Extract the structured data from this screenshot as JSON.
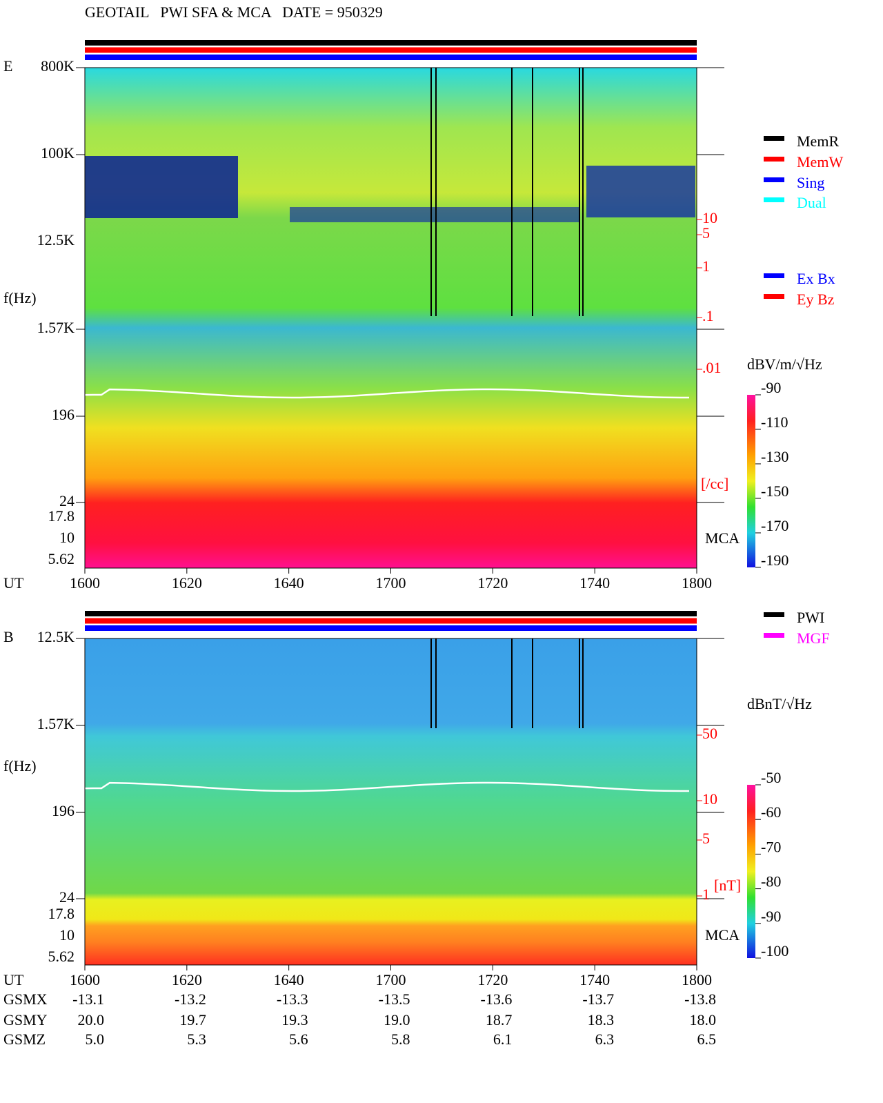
{
  "title": "GEOTAIL   PWI SFA & MCA   DATE = 950329",
  "panels": [
    {
      "label": "E",
      "y_label": "f(Hz)",
      "x_label": "UT",
      "freq_ticks": [
        "800K",
        "100K",
        "12.5K",
        "1.57K",
        "196",
        "24",
        "17.8",
        "10",
        "5.62"
      ],
      "xticks": [
        "1600",
        "1620",
        "1640",
        "1700",
        "1720",
        "1740",
        "1800"
      ],
      "legend": [
        {
          "name": "MemR",
          "color": "#000000"
        },
        {
          "name": "MemW",
          "color": "#ff0000"
        },
        {
          "name": "Sing",
          "color": "#0000ff"
        },
        {
          "name": "Dual",
          "color": "#00ffff"
        }
      ],
      "legend2": [
        {
          "name": "Ex Bx",
          "color": "#0000ff"
        },
        {
          "name": "Ey Bz",
          "color": "#ff0000"
        }
      ],
      "right_ticks": [
        "10",
        "5",
        "1",
        ".1",
        ".01"
      ],
      "right_unit": "[/cc]",
      "mca": "MCA",
      "colorbar_title": "dBV/m/√Hz",
      "colorbar_ticks": [
        -90,
        -110,
        -130,
        -150,
        -170,
        -190
      ]
    },
    {
      "label": "B",
      "y_label": "f(Hz)",
      "x_label": "UT",
      "freq_ticks": [
        "12.5K",
        "1.57K",
        "196",
        "24",
        "17.8",
        "10",
        "5.62"
      ],
      "xticks": [
        "1600",
        "1620",
        "1640",
        "1700",
        "1720",
        "1740",
        "1800"
      ],
      "legend": [
        {
          "name": "PWI",
          "color": "#000000"
        },
        {
          "name": "MGF",
          "color": "#ff00ff"
        }
      ],
      "right_ticks": [
        "50",
        "10",
        "5",
        "1"
      ],
      "right_unit": "[nT]",
      "mca": "MCA",
      "colorbar_title": "dBnT/√Hz",
      "colorbar_ticks": [
        -50,
        -60,
        -70,
        -80,
        -90,
        -100
      ]
    }
  ],
  "orbit": [
    {
      "name": "GSMX",
      "values": [
        "-13.1",
        "-13.2",
        "-13.3",
        "-13.5",
        "-13.6",
        "-13.7",
        "-13.8"
      ]
    },
    {
      "name": "GSMY",
      "values": [
        "20.0",
        "19.7",
        "19.3",
        "19.0",
        "18.7",
        "18.3",
        "18.0"
      ]
    },
    {
      "name": "GSMZ",
      "values": [
        "5.0",
        "5.3",
        "5.6",
        "5.8",
        "6.1",
        "6.3",
        "6.5"
      ]
    }
  ]
}
